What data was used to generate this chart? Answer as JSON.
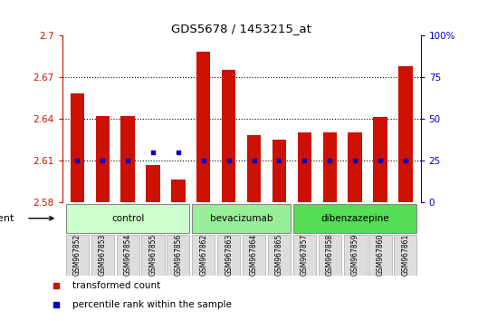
{
  "title": "GDS5678 / 1453215_at",
  "samples": [
    "GSM967852",
    "GSM967853",
    "GSM967854",
    "GSM967855",
    "GSM967856",
    "GSM967862",
    "GSM967863",
    "GSM967864",
    "GSM967865",
    "GSM967857",
    "GSM967858",
    "GSM967859",
    "GSM967860",
    "GSM967861"
  ],
  "transformed_counts": [
    2.658,
    2.642,
    2.642,
    2.607,
    2.596,
    2.688,
    2.675,
    2.628,
    2.625,
    2.63,
    2.63,
    2.63,
    2.641,
    2.678
  ],
  "percentile_ranks": [
    25,
    25,
    25,
    30,
    30,
    25,
    25,
    25,
    25,
    25,
    25,
    25,
    25,
    25
  ],
  "groups": [
    {
      "label": "control",
      "start": 0,
      "end": 4,
      "color": "#ccffcc"
    },
    {
      "label": "bevacizumab",
      "start": 5,
      "end": 8,
      "color": "#99ee99"
    },
    {
      "label": "dibenzazepine",
      "start": 9,
      "end": 13,
      "color": "#55dd55"
    }
  ],
  "ylim": [
    2.58,
    2.7
  ],
  "yticks_left": [
    2.58,
    2.61,
    2.64,
    2.67,
    2.7
  ],
  "ytick_labels_left": [
    "2.58",
    "2.61",
    "2.64",
    "2.67",
    "2.7"
  ],
  "right_yticks": [
    0,
    25,
    50,
    75,
    100
  ],
  "right_ytick_labels": [
    "0",
    "25",
    "50",
    "75",
    "100%"
  ],
  "bar_color": "#cc1100",
  "dot_color": "#0000cc",
  "bar_bottom": 2.58,
  "bar_width": 0.55,
  "grid_lines": [
    2.61,
    2.64,
    2.67
  ],
  "left_axis_color": "#cc1100",
  "right_axis_color": "#0000cc",
  "legend_items": [
    {
      "color": "#cc1100",
      "label": "transformed count"
    },
    {
      "color": "#0000cc",
      "label": "percentile rank within the sample"
    }
  ],
  "group_colors": [
    "#ccffcc",
    "#99ee99",
    "#55dd55"
  ]
}
